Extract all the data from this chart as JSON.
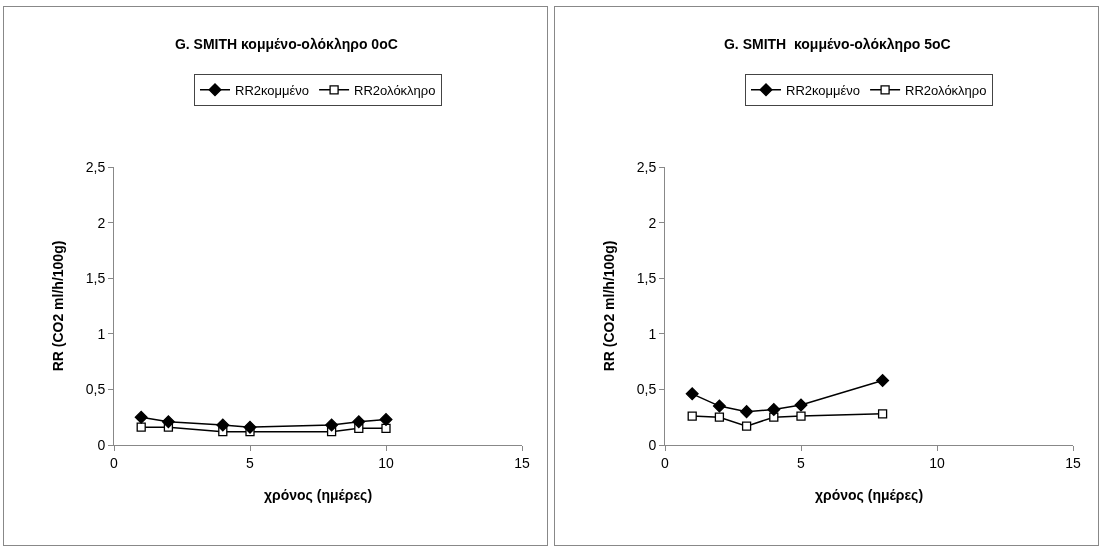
{
  "chart_data": [
    {
      "type": "line",
      "title": "G. SMITH κομμένο-ολόκληρο 0oC",
      "xlabel": "χρόνος (ημέρες)",
      "ylabel": "RR (CO2 ml/h/100g)",
      "x": [
        1,
        2,
        4,
        5,
        8,
        9,
        10
      ],
      "series": [
        {
          "name": "RR2κομμένο",
          "color": "#000000",
          "marker": "diamond",
          "values": [
            0.25,
            0.21,
            0.18,
            0.16,
            0.18,
            0.21,
            0.23
          ]
        },
        {
          "name": "RR2ολόκληρο",
          "color": "#000000",
          "marker": "square",
          "values": [
            0.16,
            0.16,
            0.12,
            0.12,
            0.12,
            0.15,
            0.15
          ]
        }
      ],
      "xlim": [
        0,
        15
      ],
      "xticks": [
        0,
        5,
        10,
        15
      ],
      "ylim": [
        0,
        2.5
      ],
      "yticks": [
        0,
        {
          "value": 0.5,
          "label": "0,5"
        },
        1,
        {
          "value": 1.5,
          "label": "1,5"
        },
        2,
        {
          "value": 2.5,
          "label": "2,5"
        }
      ],
      "grid": false,
      "legend": "top",
      "line_style": "solid"
    },
    {
      "type": "line",
      "title": "G. SMITH  κομμένο-ολόκληρο 5oC",
      "xlabel": "χρόνος (ημέρες)",
      "ylabel": "RR (CO2 ml/h/100g)",
      "x": [
        1,
        2,
        3,
        4,
        5,
        8
      ],
      "series": [
        {
          "name": "RR2κομμένο",
          "color": "#000000",
          "marker": "diamond",
          "values": [
            0.46,
            0.35,
            0.3,
            0.32,
            0.36,
            0.58
          ]
        },
        {
          "name": "RR2ολόκληρο",
          "color": "#000000",
          "marker": "square",
          "values": [
            0.26,
            0.25,
            0.17,
            0.25,
            0.26,
            0.28
          ]
        }
      ],
      "xlim": [
        0,
        15
      ],
      "xticks": [
        0,
        5,
        10,
        15
      ],
      "ylim": [
        0,
        2.5
      ],
      "yticks": [
        0,
        {
          "value": 0.5,
          "label": "0,5"
        },
        1,
        {
          "value": 1.5,
          "label": "1,5"
        },
        2,
        {
          "value": 2.5,
          "label": "2,5"
        }
      ],
      "grid": false,
      "legend": "top",
      "line_style": "solid"
    }
  ]
}
